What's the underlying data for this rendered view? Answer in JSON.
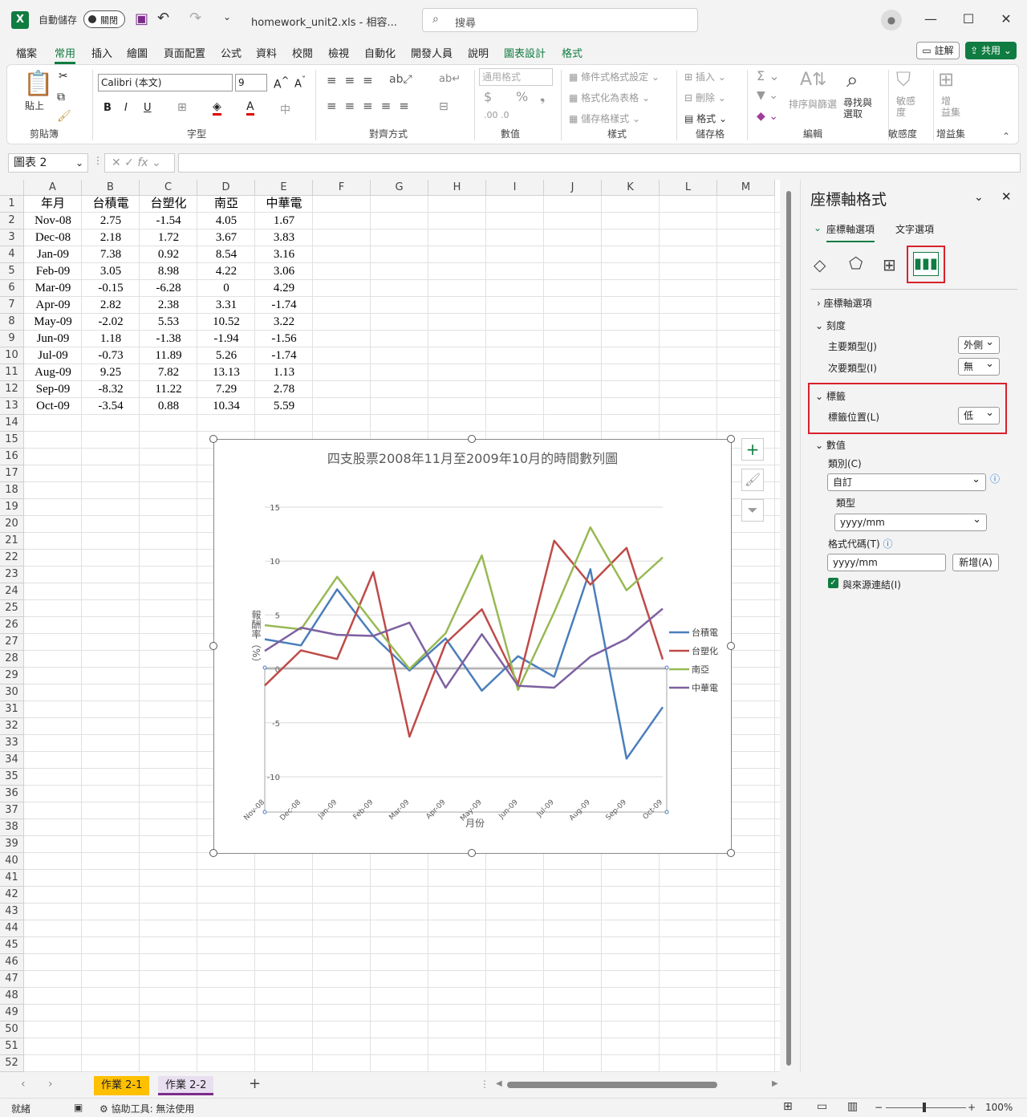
{
  "titlebar": {
    "autosave_label": "自動儲存",
    "autosave_state": "關閉",
    "filename": "homework_unit2.xls  -  相容...",
    "search_placeholder": "搜尋"
  },
  "menu": {
    "items": [
      "檔案",
      "常用",
      "插入",
      "繪圖",
      "頁面配置",
      "公式",
      "資料",
      "校閱",
      "檢視",
      "自動化",
      "開發人員",
      "說明",
      "圖表設計",
      "格式"
    ],
    "note_btn": "註解",
    "share_btn": "共用"
  },
  "ribbon": {
    "clipboard": {
      "paste": "貼上",
      "label": "剪貼簿"
    },
    "font": {
      "name": "Calibri (本文)",
      "size": "9",
      "label": "字型"
    },
    "alignment": {
      "label": "對齊方式"
    },
    "number": {
      "format": "通用格式",
      "label": "數值"
    },
    "styles": {
      "conditional": "條件式格式設定",
      "table": "格式化為表格",
      "cell": "儲存格樣式",
      "label": "樣式"
    },
    "cells": {
      "insert": "插入",
      "delete": "刪除",
      "format": "格式",
      "label": "儲存格"
    },
    "editing": {
      "sort": "排序與篩選",
      "find": "尋找與\n選取",
      "label": "編輯"
    },
    "sensitivity": {
      "btn": "敏感\n度",
      "label": "敏感度"
    },
    "addins": {
      "btn": "增\n益集",
      "label": "增益集"
    }
  },
  "formula_bar": {
    "name_box": "圖表 2",
    "fx": "fx",
    "value": ""
  },
  "sheet": {
    "columns": [
      "A",
      "B",
      "C",
      "D",
      "E",
      "F",
      "G",
      "H",
      "I",
      "J",
      "K",
      "L",
      "M"
    ],
    "header_row": [
      "年月",
      "台積電",
      "台塑化",
      "南亞",
      "中華電"
    ],
    "rows": [
      [
        "Nov-08",
        "2.75",
        "-1.54",
        "4.05",
        "1.67"
      ],
      [
        "Dec-08",
        "2.18",
        "1.72",
        "3.67",
        "3.83"
      ],
      [
        "Jan-09",
        "7.38",
        "0.92",
        "8.54",
        "3.16"
      ],
      [
        "Feb-09",
        "3.05",
        "8.98",
        "4.22",
        "3.06"
      ],
      [
        "Mar-09",
        "-0.15",
        "-6.28",
        "0",
        "4.29"
      ],
      [
        "Apr-09",
        "2.82",
        "2.38",
        "3.31",
        "-1.74"
      ],
      [
        "May-09",
        "-2.02",
        "5.53",
        "10.52",
        "3.22"
      ],
      [
        "Jun-09",
        "1.18",
        "-1.38",
        "-1.94",
        "-1.56"
      ],
      [
        "Jul-09",
        "-0.73",
        "11.89",
        "5.26",
        "-1.74"
      ],
      [
        "Aug-09",
        "9.25",
        "7.82",
        "13.13",
        "1.13"
      ],
      [
        "Sep-09",
        "-8.32",
        "11.22",
        "7.29",
        "2.78"
      ],
      [
        "Oct-09",
        "-3.54",
        "0.88",
        "10.34",
        "5.59"
      ]
    ],
    "row_count": 52
  },
  "chart_data": {
    "type": "line",
    "title": "四支股票2008年11月至2009年10月的時間數列圖",
    "xlabel": "月份",
    "ylabel": "報酬率（%）",
    "ylim": [
      -10,
      15
    ],
    "yticks": [
      15,
      10,
      5,
      0,
      -5,
      -10
    ],
    "categories": [
      "Nov-08",
      "Dec-08",
      "Jan-09",
      "Feb-09",
      "Mar-09",
      "Apr-09",
      "May-09",
      "Jun-09",
      "Jul-09",
      "Aug-09",
      "Sep-09",
      "Oct-09"
    ],
    "legend": "right",
    "grid": true,
    "series": [
      {
        "name": "台積電",
        "color": "#4a7ebb",
        "values": [
          2.75,
          2.18,
          7.38,
          3.05,
          -0.15,
          2.82,
          -2.02,
          1.18,
          -0.73,
          9.25,
          -8.32,
          -3.54
        ]
      },
      {
        "name": "台塑化",
        "color": "#be4b48",
        "values": [
          -1.54,
          1.72,
          0.92,
          8.98,
          -6.28,
          2.38,
          5.53,
          -1.38,
          11.89,
          7.82,
          11.22,
          0.88
        ]
      },
      {
        "name": "南亞",
        "color": "#98b954",
        "values": [
          4.05,
          3.67,
          8.54,
          4.22,
          0,
          3.31,
          10.52,
          -1.94,
          5.26,
          13.13,
          7.29,
          10.34
        ]
      },
      {
        "name": "中華電",
        "color": "#7d60a0",
        "values": [
          1.67,
          3.83,
          3.16,
          3.06,
          4.29,
          -1.74,
          3.22,
          -1.56,
          -1.74,
          1.13,
          2.78,
          5.59
        ]
      }
    ]
  },
  "panel": {
    "title": "座標軸格式",
    "tab_axis": "座標軸選項",
    "tab_text": "文字選項",
    "section_axis_options": "座標軸選項",
    "section_ticks": "刻度",
    "major_type_label": "主要類型(J)",
    "major_type_value": "外側",
    "minor_type_label": "次要類型(I)",
    "minor_type_value": "無",
    "section_labels": "標籤",
    "label_position_label": "標籤位置(L)",
    "label_position_value": "低",
    "section_number": "數值",
    "category_label": "類別(C)",
    "category_value": "自訂",
    "type_label": "類型",
    "type_value": "yyyy/mm",
    "format_code_label": "格式代碼(T)",
    "format_code_value": "yyyy/mm",
    "add_btn": "新增(A)",
    "link_source": "與來源連結(I)"
  },
  "sheet_tabs": [
    "作業 2-1",
    "作業 2-2"
  ],
  "status": {
    "ready": "就緒",
    "accessibility": "協助工具: 無法使用",
    "zoom": "100%"
  }
}
